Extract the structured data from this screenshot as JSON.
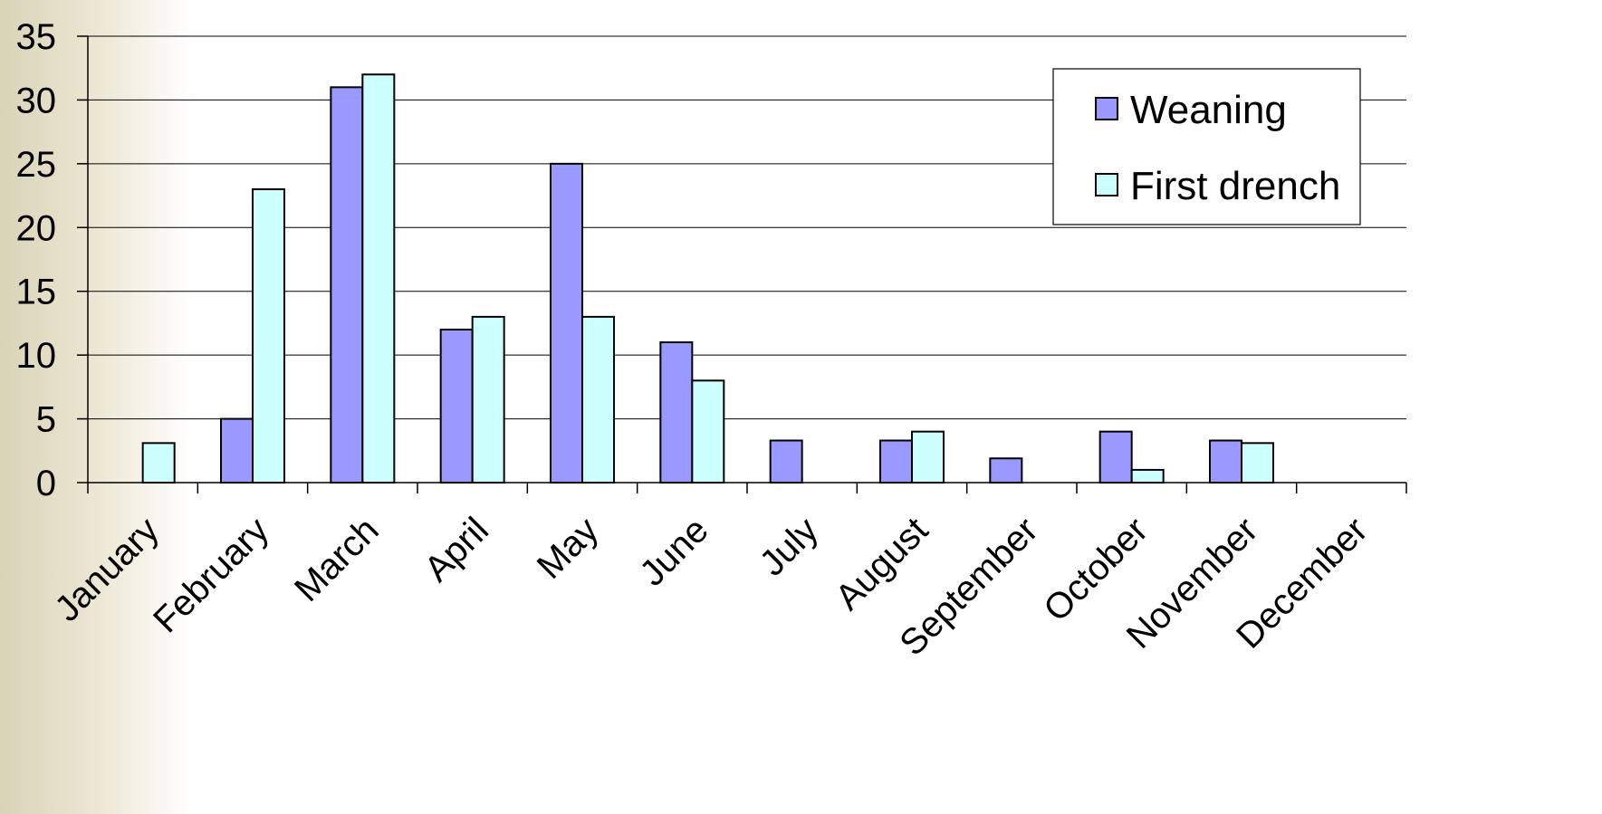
{
  "chart_data": {
    "type": "bar",
    "categories": [
      "January",
      "February",
      "March",
      "April",
      "May",
      "June",
      "July",
      "August",
      "September",
      "October",
      "November",
      "December"
    ],
    "series": [
      {
        "name": "Weaning",
        "color": "#9999ff",
        "values": [
          0,
          5,
          31,
          12,
          25,
          11,
          3.3,
          3.3,
          1.9,
          4,
          3.3,
          0
        ]
      },
      {
        "name": "First drench",
        "color": "#ccffff",
        "values": [
          3.1,
          23,
          32,
          13,
          13,
          8,
          0,
          4,
          0,
          1,
          3.1,
          0
        ]
      }
    ],
    "y_ticks": [
      "0",
      "5",
      "10",
      "15",
      "20",
      "25",
      "30",
      "35"
    ],
    "ylim": [
      0,
      35
    ],
    "grid": true,
    "legend_position": "top-right",
    "title": "",
    "xlabel": "",
    "ylabel": ""
  }
}
